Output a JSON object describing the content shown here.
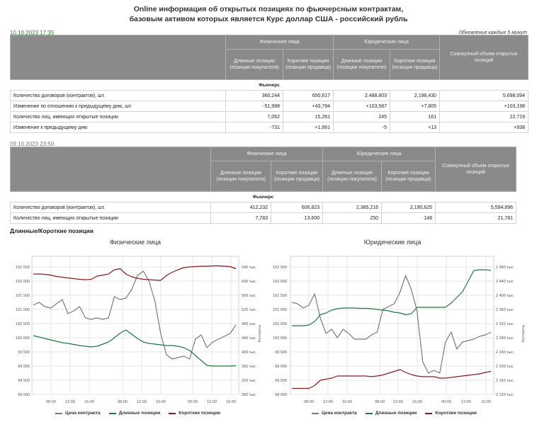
{
  "header": {
    "title_line1": "Online информация об открытых позициях по фьючерсным контрактам,",
    "title_line2": "базовым активом которых является Курс доллар США - российский рубль",
    "current_timestamp": "10.10.2023 17:35",
    "update_note": "Обновление каждые 5 минут",
    "previous_timestamp": "09.10.2023 23:50"
  },
  "table_headers": {
    "group_individuals": "Физические лица",
    "group_legal": "Юридические лица",
    "long": "Длинные позиции (позиции покупателя)",
    "short": "Короткие позиции (позиции продавца)",
    "total": "Совокупный объем открытых позиций",
    "section": "Фьючерс"
  },
  "current_table": {
    "rows": [
      {
        "label": "Количество договоров (контрактов), шт.",
        "values": [
          "360,244",
          "650,617",
          "2,488,803",
          "2,198,430",
          "5,698,094"
        ],
        "kinds": [
          "",
          "",
          "",
          "",
          ""
        ]
      },
      {
        "label": "Изменение по отношению к предыдущему дню, шт.",
        "values": [
          "-51,988",
          "+43,794",
          "+103,587",
          "+7,805",
          "+103,198"
        ],
        "kinds": [
          "neg",
          "pos",
          "pos",
          "pos",
          "pos"
        ]
      },
      {
        "label": "Количество лиц, имеющих открытые позиции",
        "values": [
          "7,052",
          "15,261",
          "245",
          "161",
          "22,719"
        ],
        "kinds": [
          "",
          "",
          "",
          "",
          ""
        ]
      },
      {
        "label": "Изменение к предыдущему дню",
        "values": [
          "-731",
          "+1,661",
          "-5",
          "+13",
          "+938"
        ],
        "kinds": [
          "neg",
          "pos",
          "neg",
          "pos",
          "pos"
        ]
      }
    ]
  },
  "previous_table": {
    "rows": [
      {
        "label": "Количество договоров (контрактов), шт.",
        "values": [
          "412,232",
          "606,823",
          "2,385,216",
          "2,190,625",
          "5,594,896"
        ]
      },
      {
        "label": "Количество лиц, имеющих открытые позиции",
        "values": [
          "7,783",
          "13,600",
          "250",
          "148",
          "21,781"
        ]
      }
    ]
  },
  "charts_section_title": "Длинные/Короткие позиции",
  "legend": {
    "price": "Цена контракта",
    "long": "Длинные позиции",
    "short": "Короткие позиции"
  },
  "colors": {
    "price": "#7a7a7a",
    "long": "#1e7a3c",
    "short": "#8b1a1a",
    "positive": "#2e7d32",
    "negative": "#d32f2f",
    "header_bg": "#8a8a8a"
  },
  "chart_data": [
    {
      "type": "line",
      "title": "Физические лица",
      "ylabel_right": "Контракты",
      "x_ticks": [
        "00:00",
        "12:00",
        "16:00",
        "08:00",
        "12:00",
        "16:00",
        "00:00",
        "12:00",
        "16:00"
      ],
      "y_left_ticks": [
        "102 500",
        "102 000",
        "101 500",
        "101 000",
        "100 500",
        "100 000",
        "99 500",
        "99 000",
        "98 500",
        "98 000"
      ],
      "y_left_range": [
        98000,
        102500
      ],
      "y_right_ticks": [
        "640 тыс",
        "600 тыс",
        "560 тыс",
        "520 тыс",
        "480 тыс",
        "440 тыс",
        "400 тыс",
        "360 тыс",
        "320 тыс",
        "280 тыс"
      ],
      "y_right_range": [
        280,
        640
      ],
      "grid": true,
      "legend_position": "bottom",
      "series": [
        {
          "name": "Цена контракта",
          "axis": "left",
          "values": [
            101150,
            101250,
            101100,
            101050,
            101200,
            101350,
            100850,
            100950,
            101100,
            100700,
            100650,
            100700,
            100650,
            100700,
            101450,
            101350,
            101400,
            101700,
            102200,
            102350,
            102000,
            101300,
            100150,
            99400,
            99250,
            99300,
            99350,
            99250,
            99950,
            100100,
            99650,
            99850,
            99950,
            100050,
            100150,
            100450
          ]
        },
        {
          "name": "Длинные позиции",
          "axis": "right",
          "values": [
            446,
            442,
            438,
            434,
            430,
            426,
            424,
            421,
            418,
            416,
            414,
            416,
            422,
            428,
            440,
            453,
            462,
            450,
            438,
            428,
            424,
            422,
            420,
            418,
            418,
            416,
            412,
            404,
            390,
            376,
            362,
            360,
            360,
            360,
            360,
            361
          ]
        },
        {
          "name": "Короткие позиции",
          "axis": "right",
          "values": [
            620,
            620,
            619,
            617,
            613,
            611,
            609,
            607,
            605,
            604,
            605,
            614,
            617,
            620,
            632,
            635,
            620,
            612,
            608,
            605,
            604,
            603,
            602,
            616,
            625,
            632,
            638,
            640,
            641,
            642,
            642,
            643,
            643,
            642,
            641,
            635
          ]
        }
      ]
    },
    {
      "type": "line",
      "title": "Юридические лица",
      "ylabel_right": "Контракты",
      "x_ticks": [
        "08:00",
        "12:00",
        "16:00",
        "08:00",
        "12:00",
        "16:00",
        "00:00",
        "12:00",
        "16:00"
      ],
      "y_left_ticks": [
        "102 500",
        "102 000",
        "101 500",
        "101 000",
        "100 500",
        "100 000",
        "99 500",
        "99 000",
        "98 500",
        "98 000"
      ],
      "y_left_range": [
        98000,
        102500
      ],
      "y_right_ticks": [
        "2 480 тыс",
        "2 440 тыс",
        "2 400 тыс",
        "2 360 тыс",
        "2 320 тыс",
        "2 280 тыс",
        "2 240 тыс",
        "2 200 тыс",
        "2 160 тыс",
        "2 120 тыс"
      ],
      "y_right_range": [
        2120,
        2480
      ],
      "grid": true,
      "legend_position": "bottom",
      "series": [
        {
          "name": "Цена контракта",
          "axis": "left",
          "values": [
            101250,
            101200,
            101050,
            101150,
            101550,
            100700,
            100150,
            100300,
            100000,
            100300,
            100150,
            99950,
            99950,
            99950,
            100100,
            100200,
            101000,
            101100,
            101200,
            101600,
            102200,
            101700,
            100950,
            99150,
            98750,
            98850,
            98750,
            99850,
            100200,
            99600,
            99850,
            99900,
            99950,
            100050,
            100100,
            100200
          ]
        },
        {
          "name": "Длинные позиции",
          "axis": "right",
          "values": [
            2314,
            2314,
            2314,
            2316,
            2326,
            2345,
            2350,
            2358,
            2362,
            2364,
            2364,
            2364,
            2363,
            2363,
            2362,
            2360,
            2358,
            2356,
            2352,
            2350,
            2345,
            2348,
            2366,
            2366,
            2366,
            2366,
            2366,
            2366,
            2378,
            2394,
            2410,
            2440,
            2470,
            2472,
            2472,
            2470
          ]
        },
        {
          "name": "Короткие позиции",
          "axis": "right",
          "values": [
            2137,
            2137,
            2137,
            2137,
            2145,
            2160,
            2163,
            2166,
            2172,
            2172,
            2172,
            2172,
            2172,
            2172,
            2170,
            2172,
            2175,
            2180,
            2185,
            2190,
            2182,
            2176,
            2172,
            2170,
            2170,
            2170,
            2166,
            2166,
            2168,
            2170,
            2172,
            2174,
            2176,
            2178,
            2182,
            2185
          ]
        }
      ]
    }
  ]
}
